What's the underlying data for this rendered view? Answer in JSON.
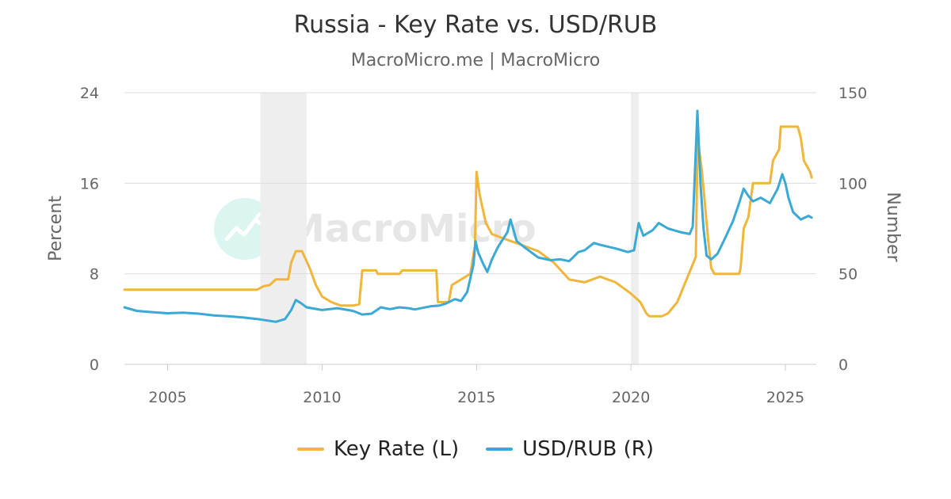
{
  "header": {
    "title": "Russia - Key Rate vs. USD/RUB",
    "subtitle": "MacroMicro.me | MacroMicro"
  },
  "watermark": {
    "text": "MacroMicro",
    "icon": "macromicro-logo-icon"
  },
  "colors": {
    "key_rate": "#F0B63C",
    "usd_rub": "#3BA9D6",
    "recession": "#EEEEEE",
    "grid": "#DDDDDD"
  },
  "chart_data": {
    "type": "line",
    "title": "Russia - Key Rate vs. USD/RUB",
    "subtitle": "MacroMicro.me | MacroMicro",
    "grid": true,
    "legend_position": "bottom-center",
    "xlim": [
      2003.6,
      2026.0
    ],
    "x_ticks": [
      2005,
      2010,
      2015,
      2020,
      2025
    ],
    "y_left": {
      "label": "Percent",
      "lim": [
        0,
        24
      ],
      "ticks": [
        0,
        8,
        16,
        24
      ]
    },
    "y_right": {
      "label": "Number",
      "lim": [
        0,
        150
      ],
      "ticks": [
        0,
        50,
        100,
        150
      ]
    },
    "shaded_periods": [
      [
        2008.0,
        2009.5
      ],
      [
        2020.0,
        2020.25
      ]
    ],
    "series": [
      {
        "name": "Key Rate (L)",
        "axis": "left",
        "color": "#F0B63C",
        "points": [
          [
            2003.6,
            6.6
          ],
          [
            2007.9,
            6.6
          ],
          [
            2008.1,
            6.9
          ],
          [
            2008.3,
            7.0
          ],
          [
            2008.5,
            7.5
          ],
          [
            2008.9,
            7.5
          ],
          [
            2009.0,
            9.0
          ],
          [
            2009.15,
            10.0
          ],
          [
            2009.35,
            10.0
          ],
          [
            2009.6,
            8.5
          ],
          [
            2009.8,
            7.0
          ],
          [
            2010.0,
            6.0
          ],
          [
            2010.3,
            5.5
          ],
          [
            2010.6,
            5.2
          ],
          [
            2011.0,
            5.2
          ],
          [
            2011.2,
            5.3
          ],
          [
            2011.3,
            8.3
          ],
          [
            2011.75,
            8.3
          ],
          [
            2011.8,
            8.0
          ],
          [
            2012.5,
            8.0
          ],
          [
            2012.6,
            8.3
          ],
          [
            2013.7,
            8.3
          ],
          [
            2013.75,
            5.5
          ],
          [
            2014.1,
            5.5
          ],
          [
            2014.2,
            7.0
          ],
          [
            2014.5,
            7.5
          ],
          [
            2014.8,
            8.0
          ],
          [
            2014.95,
            10.5
          ],
          [
            2015.0,
            17.0
          ],
          [
            2015.1,
            15.0
          ],
          [
            2015.3,
            12.5
          ],
          [
            2015.5,
            11.5
          ],
          [
            2016.0,
            11.0
          ],
          [
            2016.5,
            10.5
          ],
          [
            2017.0,
            10.0
          ],
          [
            2017.5,
            9.0
          ],
          [
            2018.0,
            7.5
          ],
          [
            2018.5,
            7.25
          ],
          [
            2019.0,
            7.75
          ],
          [
            2019.5,
            7.25
          ],
          [
            2020.0,
            6.25
          ],
          [
            2020.3,
            5.5
          ],
          [
            2020.5,
            4.5
          ],
          [
            2020.6,
            4.25
          ],
          [
            2021.0,
            4.25
          ],
          [
            2021.2,
            4.5
          ],
          [
            2021.5,
            5.5
          ],
          [
            2021.8,
            7.5
          ],
          [
            2021.95,
            8.5
          ],
          [
            2022.1,
            9.5
          ],
          [
            2022.16,
            20.0
          ],
          [
            2022.3,
            17.0
          ],
          [
            2022.4,
            14.0
          ],
          [
            2022.5,
            11.0
          ],
          [
            2022.6,
            8.5
          ],
          [
            2022.7,
            8.0
          ],
          [
            2023.5,
            8.0
          ],
          [
            2023.55,
            8.5
          ],
          [
            2023.65,
            12.0
          ],
          [
            2023.8,
            13.0
          ],
          [
            2023.95,
            16.0
          ],
          [
            2024.5,
            16.0
          ],
          [
            2024.6,
            18.0
          ],
          [
            2024.8,
            19.0
          ],
          [
            2024.85,
            21.0
          ],
          [
            2025.4,
            21.0
          ],
          [
            2025.5,
            20.0
          ],
          [
            2025.6,
            18.0
          ],
          [
            2025.8,
            17.0
          ],
          [
            2025.85,
            16.5
          ]
        ]
      },
      {
        "name": "USD/RUB (R)",
        "axis": "right",
        "color": "#3BA9D6",
        "points": [
          [
            2003.6,
            31.5
          ],
          [
            2004.0,
            29.5
          ],
          [
            2004.5,
            28.8
          ],
          [
            2005.0,
            28.2
          ],
          [
            2005.5,
            28.5
          ],
          [
            2006.0,
            28.0
          ],
          [
            2006.5,
            27.0
          ],
          [
            2007.0,
            26.5
          ],
          [
            2007.5,
            25.8
          ],
          [
            2008.0,
            24.8
          ],
          [
            2008.5,
            23.5
          ],
          [
            2008.8,
            25.0
          ],
          [
            2009.0,
            30.0
          ],
          [
            2009.15,
            35.5
          ],
          [
            2009.3,
            34.0
          ],
          [
            2009.5,
            31.5
          ],
          [
            2010.0,
            30.0
          ],
          [
            2010.5,
            31.0
          ],
          [
            2011.0,
            29.5
          ],
          [
            2011.3,
            27.5
          ],
          [
            2011.6,
            28.0
          ],
          [
            2011.9,
            31.5
          ],
          [
            2012.2,
            30.5
          ],
          [
            2012.5,
            31.5
          ],
          [
            2012.8,
            31.0
          ],
          [
            2013.0,
            30.3
          ],
          [
            2013.5,
            32.0
          ],
          [
            2013.8,
            32.5
          ],
          [
            2014.0,
            33.5
          ],
          [
            2014.3,
            36.0
          ],
          [
            2014.5,
            35.0
          ],
          [
            2014.7,
            40.0
          ],
          [
            2014.9,
            55.0
          ],
          [
            2014.97,
            68.0
          ],
          [
            2015.05,
            62.0
          ],
          [
            2015.2,
            56.0
          ],
          [
            2015.35,
            51.0
          ],
          [
            2015.5,
            58.0
          ],
          [
            2015.7,
            65.0
          ],
          [
            2016.0,
            73.0
          ],
          [
            2016.1,
            80.0
          ],
          [
            2016.3,
            68.0
          ],
          [
            2016.6,
            64.0
          ],
          [
            2017.0,
            59.0
          ],
          [
            2017.4,
            57.5
          ],
          [
            2017.7,
            58.0
          ],
          [
            2018.0,
            57.0
          ],
          [
            2018.3,
            62.0
          ],
          [
            2018.5,
            63.0
          ],
          [
            2018.8,
            67.0
          ],
          [
            2019.0,
            66.0
          ],
          [
            2019.5,
            64.0
          ],
          [
            2019.9,
            62.0
          ],
          [
            2020.1,
            63.0
          ],
          [
            2020.25,
            78.0
          ],
          [
            2020.4,
            71.0
          ],
          [
            2020.7,
            74.0
          ],
          [
            2020.9,
            78.0
          ],
          [
            2021.2,
            75.0
          ],
          [
            2021.6,
            73.0
          ],
          [
            2021.9,
            72.0
          ],
          [
            2022.0,
            76.0
          ],
          [
            2022.15,
            140.0
          ],
          [
            2022.25,
            100.0
          ],
          [
            2022.35,
            75.0
          ],
          [
            2022.45,
            60.0
          ],
          [
            2022.6,
            58.0
          ],
          [
            2022.8,
            61.0
          ],
          [
            2023.0,
            68.0
          ],
          [
            2023.3,
            79.0
          ],
          [
            2023.5,
            89.0
          ],
          [
            2023.65,
            97.0
          ],
          [
            2023.8,
            93.0
          ],
          [
            2023.95,
            90.0
          ],
          [
            2024.2,
            92.0
          ],
          [
            2024.5,
            89.0
          ],
          [
            2024.75,
            97.0
          ],
          [
            2024.9,
            105.0
          ],
          [
            2025.0,
            100.0
          ],
          [
            2025.1,
            92.0
          ],
          [
            2025.25,
            84.0
          ],
          [
            2025.5,
            80.0
          ],
          [
            2025.75,
            82.0
          ],
          [
            2025.85,
            81.0
          ]
        ]
      }
    ]
  },
  "legend": {
    "items": [
      {
        "label": "Key Rate (L)",
        "color": "#F0B63C"
      },
      {
        "label": "USD/RUB (R)",
        "color": "#3BA9D6"
      }
    ]
  }
}
